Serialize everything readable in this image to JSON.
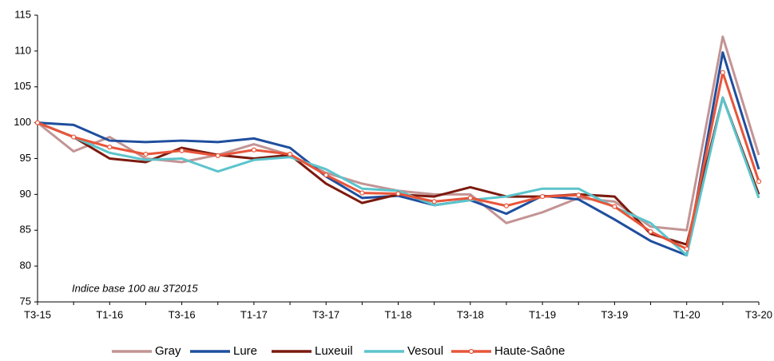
{
  "chart_data": {
    "type": "line",
    "annotation": "Indice base 100 au 3T2015",
    "categories": [
      "T3-15",
      null,
      "T1-16",
      null,
      "T3-16",
      null,
      "T1-17",
      null,
      "T3-17",
      null,
      "T1-18",
      null,
      "T3-18",
      null,
      "T1-19",
      null,
      "T3-19",
      null,
      "T1-20",
      null,
      "T3-20"
    ],
    "ylim": [
      75,
      115
    ],
    "yticks": [
      75,
      80,
      85,
      90,
      95,
      100,
      105,
      110,
      115
    ],
    "grid": false,
    "legend": "bottom",
    "series": [
      {
        "name": "Gray",
        "color": "#c39494",
        "markers": false,
        "values": [
          100,
          96,
          98,
          95,
          94.5,
          95.5,
          97,
          95.5,
          93,
          91.5,
          90.5,
          90,
          90,
          86,
          87.5,
          89.5,
          89,
          85.5,
          85,
          112,
          95.5
        ]
      },
      {
        "name": "Lure",
        "color": "#1f4e9e",
        "markers": false,
        "values": [
          100,
          99.7,
          97.5,
          97.3,
          97.5,
          97.3,
          97.8,
          96.5,
          92.5,
          89.5,
          89.8,
          88.5,
          89.2,
          87.3,
          89.8,
          89.3,
          86.5,
          83.5,
          81.5,
          109.8,
          93.5
        ]
      },
      {
        "name": "Luxeuil",
        "color": "#7b1a0e",
        "markers": false,
        "values": [
          100,
          98,
          95,
          94.5,
          96.5,
          95.5,
          95,
          95.5,
          91.5,
          88.8,
          90,
          89.7,
          91,
          89.7,
          89.7,
          90,
          89.7,
          84.5,
          83,
          103.5,
          90
        ]
      },
      {
        "name": "Vesoul",
        "color": "#5bc4cc",
        "markers": false,
        "values": [
          100,
          98,
          95.8,
          94.8,
          95,
          93.2,
          94.8,
          95.2,
          93.5,
          90.8,
          90.5,
          88.5,
          89.2,
          89.7,
          90.8,
          90.8,
          88.2,
          86,
          81.5,
          103.5,
          89.5
        ]
      },
      {
        "name": "Haute-Saône",
        "color": "#e8553a",
        "markers": true,
        "values": [
          100,
          98,
          96.6,
          95.6,
          96.1,
          95.4,
          96.2,
          95.6,
          92.7,
          90.2,
          90.1,
          89,
          89.5,
          88.4,
          89.7,
          89.9,
          88.3,
          84.8,
          82.4,
          107,
          91.8
        ]
      }
    ]
  }
}
